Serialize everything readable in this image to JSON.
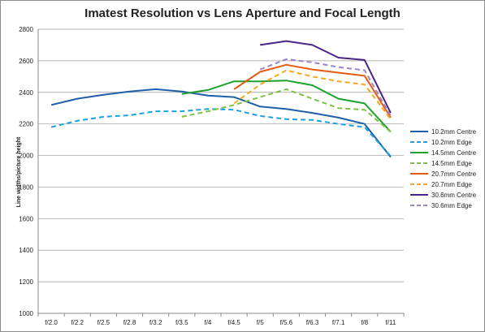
{
  "chart_data": {
    "type": "line",
    "title": "Imatest Resolution vs Lens Aperture and Focal Length",
    "xlabel": "",
    "ylabel": "Line widths/picture height",
    "ylim": [
      1000,
      2800
    ],
    "yticks": [
      1000,
      1200,
      1400,
      1600,
      1800,
      2000,
      2200,
      2400,
      2600,
      2800
    ],
    "grid": "horizontal",
    "legend_position": "right",
    "categories": [
      "f/2.0",
      "f/2.2",
      "f/2.5",
      "f/2.8",
      "f/3.2",
      "f/3.5",
      "f/4",
      "f/4.5",
      "f/5",
      "f/5.6",
      "f/6.3",
      "f/7.1",
      "f/8",
      "f/11"
    ],
    "series": [
      {
        "name": "10.2mm Centre",
        "color": "#1f5fa8",
        "dash": "solid",
        "values": [
          2320,
          2360,
          2385,
          2405,
          2420,
          2405,
          2380,
          2370,
          2310,
          2295,
          2270,
          2240,
          2200,
          1990
        ]
      },
      {
        "name": "10.2mm Edge",
        "color": "#1ea0e0",
        "dash": "dashed",
        "values": [
          2180,
          2220,
          2245,
          2255,
          2280,
          2280,
          2295,
          2290,
          2250,
          2230,
          2225,
          2200,
          2180,
          1995
        ]
      },
      {
        "name": "14.5mm Centre",
        "color": "#1fa12e",
        "dash": "solid",
        "values": [
          null,
          null,
          null,
          null,
          null,
          2390,
          2415,
          2470,
          2470,
          2475,
          2445,
          2360,
          2330,
          2150
        ]
      },
      {
        "name": "14.5mm Edge",
        "color": "#7cc142",
        "dash": "dashed",
        "values": [
          null,
          null,
          null,
          null,
          null,
          2245,
          2280,
          2320,
          2370,
          2420,
          2360,
          2300,
          2290,
          2150
        ]
      },
      {
        "name": "20.7mm Centre",
        "color": "#e55a12",
        "dash": "solid",
        "values": [
          null,
          null,
          null,
          null,
          null,
          null,
          null,
          2420,
          2530,
          2575,
          2545,
          2525,
          2505,
          2240
        ]
      },
      {
        "name": "20.7mm Edge",
        "color": "#f5a623",
        "dash": "dashed",
        "values": [
          null,
          null,
          null,
          null,
          null,
          null,
          null,
          2330,
          2450,
          2540,
          2500,
          2470,
          2450,
          2230
        ]
      },
      {
        "name": "30.6mm Centre",
        "color": "#4b2586",
        "dash": "solid",
        "values": [
          null,
          null,
          null,
          null,
          null,
          null,
          null,
          null,
          2700,
          2725,
          2700,
          2620,
          2605,
          2270
        ]
      },
      {
        "name": "30.6mm Edge",
        "color": "#9c85c8",
        "dash": "dashed",
        "values": [
          null,
          null,
          null,
          null,
          null,
          null,
          null,
          null,
          2545,
          2610,
          2590,
          2560,
          2540,
          2250
        ]
      }
    ]
  }
}
